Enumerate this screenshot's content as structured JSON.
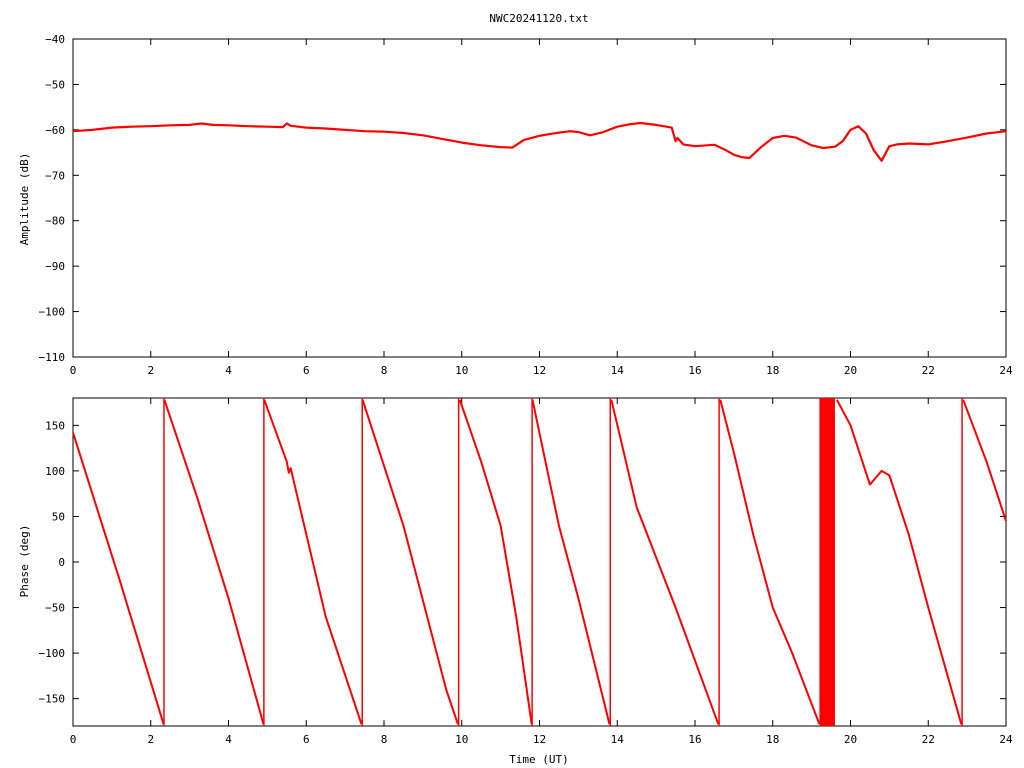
{
  "chart_data": [
    {
      "type": "line",
      "title": "NWC20241120.txt",
      "xlabel": "",
      "ylabel": "Amplitude (dB)",
      "xlim": [
        0,
        24
      ],
      "ylim": [
        -110,
        -40
      ],
      "x_ticks": [
        0,
        2,
        4,
        6,
        8,
        10,
        12,
        14,
        16,
        18,
        20,
        22,
        24
      ],
      "y_ticks": [
        -110,
        -100,
        -90,
        -80,
        -70,
        -60,
        -50,
        -40
      ],
      "x_tick_labels": [
        "0",
        "2",
        "4",
        "6",
        "8",
        "10",
        "12",
        "14",
        "16",
        "18",
        "20",
        "22",
        "24"
      ],
      "y_tick_labels": [
        "−110",
        "−100",
        "−90",
        "−80",
        "−70",
        "−60",
        "−50",
        "−40"
      ],
      "grid": false,
      "color": "#ff0000",
      "series": [
        {
          "x": [
            0,
            0.5,
            1,
            1.5,
            2,
            2.5,
            3,
            3.3,
            3.6,
            4,
            4.5,
            5,
            5.4,
            5.5,
            5.6,
            6,
            6.5,
            7,
            7.5,
            8,
            8.5,
            9,
            9.5,
            10,
            10.5,
            11,
            11.3,
            11.6,
            12,
            12.5,
            12.8,
            13,
            13.3,
            13.6,
            14,
            14.3,
            14.6,
            15,
            15.4,
            15.5,
            15.55,
            15.7,
            16,
            16.5,
            16.8,
            17,
            17.2,
            17.4,
            17.7,
            18,
            18.3,
            18.6,
            19,
            19.3,
            19.6,
            19.8,
            20,
            20.2,
            20.4,
            20.6,
            20.8,
            21,
            21.2,
            21.5,
            22,
            22.5,
            23,
            23.5,
            24
          ],
          "y": [
            -60.3,
            -60,
            -59.5,
            -59.3,
            -59.2,
            -59,
            -58.9,
            -58.6,
            -58.9,
            -59,
            -59.2,
            -59.3,
            -59.4,
            -58.6,
            -59.1,
            -59.5,
            -59.7,
            -60,
            -60.3,
            -60.4,
            -60.7,
            -61.2,
            -62,
            -62.8,
            -63.4,
            -63.8,
            -63.9,
            -62.2,
            -61.3,
            -60.6,
            -60.3,
            -60.5,
            -61.2,
            -60.6,
            -59.3,
            -58.8,
            -58.5,
            -58.9,
            -59.5,
            -62.5,
            -61.8,
            -63.2,
            -63.6,
            -63.3,
            -64.5,
            -65.5,
            -66,
            -66.2,
            -63.8,
            -61.8,
            -61.3,
            -61.7,
            -63.4,
            -64,
            -63.7,
            -62.5,
            -60,
            -59.2,
            -60.8,
            -64.5,
            -66.8,
            -63.6,
            -63.2,
            -63,
            -63.2,
            -62.5,
            -61.7,
            -60.8,
            -60.3
          ]
        }
      ]
    },
    {
      "type": "line",
      "title": "",
      "xlabel": "Time (UT)",
      "ylabel": "Phase (deg)",
      "xlim": [
        0,
        24
      ],
      "ylim": [
        -180,
        180
      ],
      "x_ticks": [
        0,
        2,
        4,
        6,
        8,
        10,
        12,
        14,
        16,
        18,
        20,
        22,
        24
      ],
      "y_ticks": [
        -150,
        -100,
        -50,
        0,
        50,
        100,
        150
      ],
      "x_tick_labels": [
        "0",
        "2",
        "4",
        "6",
        "8",
        "10",
        "12",
        "14",
        "16",
        "18",
        "20",
        "22",
        "24"
      ],
      "y_tick_labels": [
        "−150",
        "−100",
        "−50",
        "0",
        "50",
        "100",
        "150"
      ],
      "grid": false,
      "color": "#ff0000",
      "series": [
        {
          "x": [
            0,
            1.2,
            2.33
          ],
          "y": [
            142,
            -20,
            -178
          ]
        },
        {
          "x": [
            2.35,
            3.2,
            4.0,
            4.9
          ],
          "y": [
            178,
            70,
            -40,
            -178
          ]
        },
        {
          "x": [
            4.92,
            5.5,
            5.55,
            5.6,
            6.5,
            7.42
          ],
          "y": [
            178,
            110,
            98,
            103,
            -60,
            -178
          ]
        },
        {
          "x": [
            7.45,
            8.5,
            9.6,
            9.9
          ],
          "y": [
            178,
            40,
            -140,
            -178
          ]
        },
        {
          "x": [
            9.95,
            10.5,
            11.0,
            11.4,
            11.8
          ],
          "y": [
            178,
            110,
            40,
            -60,
            -178
          ]
        },
        {
          "x": [
            11.82,
            12.5,
            13.0,
            13.8
          ],
          "y": [
            178,
            40,
            -40,
            -178
          ]
        },
        {
          "x": [
            13.85,
            14.5,
            15.5,
            16.6
          ],
          "y": [
            178,
            60,
            -50,
            -178
          ]
        },
        {
          "x": [
            16.65,
            17.0,
            17.5,
            18.0,
            18.5,
            19.2
          ],
          "y": [
            178,
            120,
            30,
            -50,
            -100,
            -178
          ]
        },
        {
          "x": [
            19.65,
            20.0,
            20.5,
            20.8,
            21.0,
            21.5,
            22.0,
            22.85
          ],
          "y": [
            178,
            150,
            85,
            100,
            95,
            30,
            -50,
            -178
          ]
        },
        {
          "x": [
            22.9,
            23.5,
            24.0
          ],
          "y": [
            178,
            110,
            45
          ]
        }
      ],
      "wraps": [
        2.34,
        4.91,
        7.44,
        9.92,
        11.81,
        13.82,
        16.62,
        22.87
      ],
      "dense_band": [
        19.2,
        19.6
      ]
    }
  ]
}
